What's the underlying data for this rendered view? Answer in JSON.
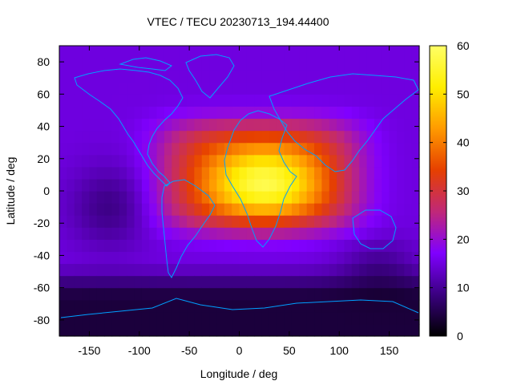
{
  "chart_data": {
    "type": "heatmap",
    "title": "VTEC / TECU 20230713_194.44400",
    "xlabel": "Longitude / deg",
    "ylabel": "Latitude / deg",
    "xlim": [
      -180,
      180
    ],
    "ylim": [
      -90,
      90
    ],
    "x_ticks": [
      -150,
      -100,
      -50,
      0,
      50,
      100,
      150
    ],
    "y_ticks": [
      -80,
      -60,
      -40,
      -20,
      0,
      20,
      40,
      60,
      80
    ],
    "colorbar": {
      "range": [
        0,
        60
      ],
      "ticks": [
        0,
        10,
        20,
        30,
        40,
        50,
        60
      ],
      "colormap": [
        "#000000",
        "#3a0080",
        "#8000ff",
        "#c02878",
        "#e64000",
        "#ff9a00",
        "#ffee00",
        "#ffff66"
      ]
    },
    "grid": false,
    "features": {
      "dayside_peak": {
        "lon": 25,
        "lat": 5,
        "value": 58
      },
      "equatorial_band": {
        "lon_range": [
          -75,
          115
        ],
        "lat_range": [
          -20,
          40
        ],
        "value_range": [
          30,
          55
        ]
      },
      "background_value": 15,
      "southern_high_lat_minimum": {
        "lat_range": [
          -90,
          -55
        ],
        "value_range": [
          2,
          8
        ]
      },
      "coastline_color": "#00a0ff"
    }
  }
}
